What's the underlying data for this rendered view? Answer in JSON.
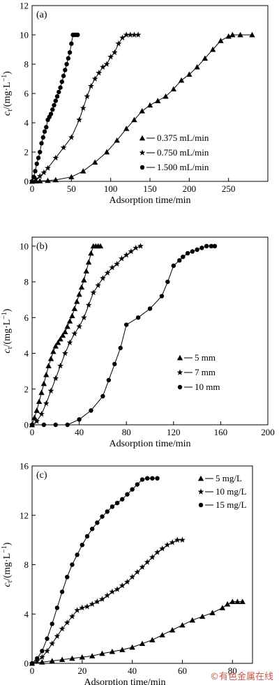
{
  "chart_data": [
    {
      "type": "line",
      "panel_label": "(a)",
      "xlabel": "Adsorption time/min",
      "ylabel": {
        "base": "c",
        "sub": "t",
        "rest": "/(mg·L",
        "sup": "−1",
        "close": ")"
      },
      "xlim": [
        0,
        300
      ],
      "ylim": [
        0,
        12
      ],
      "xticks": [
        0,
        50,
        100,
        150,
        200,
        250
      ],
      "yticks": [
        0,
        2,
        4,
        6,
        8,
        10,
        12
      ],
      "legend_position": "lower-right",
      "series": [
        {
          "name": "0.375 mL/min",
          "marker": "triangle",
          "x": [
            0,
            5,
            10,
            20,
            30,
            50,
            65,
            80,
            95,
            108,
            120,
            130,
            140,
            150,
            160,
            170,
            180,
            190,
            200,
            210,
            220,
            230,
            240,
            250,
            255,
            265,
            280
          ],
          "y": [
            0,
            0.02,
            0.03,
            0.05,
            0.1,
            0.3,
            0.7,
            1.3,
            2.0,
            2.8,
            3.6,
            4.2,
            4.8,
            5.2,
            5.5,
            5.8,
            6.3,
            6.9,
            7.3,
            7.8,
            8.4,
            9.0,
            9.6,
            9.9,
            10,
            10,
            10
          ]
        },
        {
          "name": "0.750 mL/min",
          "marker": "star",
          "x": [
            0,
            5,
            10,
            15,
            20,
            30,
            40,
            50,
            60,
            65,
            70,
            75,
            80,
            85,
            90,
            95,
            100,
            105,
            110,
            115,
            120,
            125,
            130,
            135
          ],
          "y": [
            0,
            0.15,
            0.35,
            0.6,
            0.9,
            1.6,
            2.3,
            3.0,
            4.2,
            5.0,
            5.8,
            6.5,
            7.0,
            7.4,
            7.8,
            8.0,
            8.5,
            8.8,
            9.4,
            9.8,
            10,
            10,
            10,
            10
          ]
        },
        {
          "name": "1.500 mL/min",
          "marker": "circle",
          "x": [
            0,
            2,
            4,
            6,
            8,
            10,
            12,
            14,
            16,
            18,
            20,
            22,
            24,
            26,
            28,
            30,
            32,
            34,
            36,
            38,
            40,
            42,
            44,
            46,
            48,
            50,
            52,
            54,
            56,
            58
          ],
          "y": [
            0,
            0.3,
            0.7,
            1.2,
            1.6,
            2.0,
            2.6,
            3.0,
            3.4,
            3.7,
            4.2,
            4.4,
            4.6,
            4.9,
            5.2,
            5.5,
            5.8,
            6.1,
            6.4,
            6.8,
            7.2,
            7.6,
            8.0,
            8.4,
            8.8,
            9.4,
            10,
            10,
            10,
            10
          ]
        }
      ]
    },
    {
      "type": "line",
      "panel_label": "(b)",
      "xlabel": "Adsorption time/min",
      "ylabel": {
        "base": "c",
        "sub": "t",
        "rest": "/(mg·L",
        "sup": "−1",
        "close": ")"
      },
      "xlim": [
        0,
        200
      ],
      "ylim": [
        0,
        10.5
      ],
      "xticks": [
        0,
        40,
        80,
        120,
        160,
        200
      ],
      "yticks": [
        0,
        2,
        4,
        6,
        8,
        10
      ],
      "legend_position": "lower-right",
      "series": [
        {
          "name": "5 mm",
          "marker": "triangle",
          "x": [
            0,
            2,
            4,
            6,
            8,
            10,
            12,
            14,
            16,
            18,
            20,
            22,
            24,
            26,
            28,
            30,
            32,
            34,
            36,
            38,
            40,
            42,
            44,
            46,
            48,
            50,
            52,
            54,
            56,
            58
          ],
          "y": [
            0,
            0.4,
            0.8,
            1.3,
            1.8,
            2.3,
            2.8,
            3.3,
            3.7,
            4.1,
            4.4,
            4.6,
            4.8,
            5.0,
            5.2,
            5.5,
            5.8,
            6.1,
            6.5,
            6.9,
            7.3,
            7.7,
            8.1,
            8.6,
            9.1,
            9.6,
            10,
            10,
            10,
            10
          ]
        },
        {
          "name": "7 mm",
          "marker": "star",
          "x": [
            0,
            4,
            8,
            12,
            16,
            20,
            24,
            28,
            32,
            36,
            40,
            44,
            48,
            52,
            56,
            60,
            64,
            68,
            72,
            76,
            80,
            84,
            88,
            92
          ],
          "y": [
            0,
            0.2,
            0.6,
            1.2,
            1.9,
            2.6,
            3.3,
            4.0,
            4.6,
            5.1,
            5.5,
            6.0,
            6.7,
            7.4,
            7.8,
            8.2,
            8.5,
            8.8,
            9.0,
            9.3,
            9.5,
            9.7,
            9.9,
            10
          ]
        },
        {
          "name": "10 mm",
          "marker": "circle",
          "x": [
            0,
            10,
            20,
            30,
            40,
            50,
            60,
            65,
            70,
            75,
            80,
            90,
            100,
            110,
            115,
            120,
            125,
            128,
            132,
            136,
            140,
            144,
            148,
            152,
            155
          ],
          "y": [
            0,
            0,
            0,
            0,
            0.3,
            0.8,
            1.6,
            2.5,
            3.4,
            4.3,
            5.6,
            6.0,
            6.5,
            7.2,
            8.0,
            8.9,
            9.2,
            9.4,
            9.6,
            9.7,
            9.8,
            9.9,
            10,
            10,
            10
          ]
        }
      ]
    },
    {
      "type": "line",
      "panel_label": "(c)",
      "xlabel": "Adsorption time/min",
      "ylabel": {
        "base": "c",
        "sub": "t",
        "rest": "/(mg·L",
        "sup": "−1",
        "close": ")"
      },
      "xlim": [
        0,
        88
      ],
      "ylim": [
        0,
        16
      ],
      "xticks": [
        0,
        20,
        40,
        60,
        80
      ],
      "yticks": [
        0,
        4,
        8,
        12,
        16
      ],
      "legend_position": "upper-right",
      "series": [
        {
          "name": "5 mg/L",
          "marker": "triangle",
          "x": [
            0,
            4,
            8,
            12,
            16,
            20,
            24,
            28,
            32,
            36,
            40,
            44,
            48,
            52,
            56,
            60,
            64,
            68,
            72,
            76,
            78,
            80,
            82,
            84
          ],
          "y": [
            0,
            0.1,
            0.2,
            0.3,
            0.4,
            0.5,
            0.6,
            0.8,
            0.95,
            1.1,
            1.3,
            1.6,
            1.9,
            2.3,
            2.7,
            3.1,
            3.5,
            3.8,
            4.1,
            4.5,
            4.8,
            5.0,
            5.0,
            5.0
          ]
        },
        {
          "name": "10 mg/L",
          "marker": "star",
          "x": [
            0,
            2,
            4,
            6,
            8,
            10,
            12,
            14,
            16,
            18,
            20,
            22,
            24,
            26,
            28,
            30,
            32,
            34,
            36,
            38,
            40,
            42,
            44,
            46,
            48,
            50,
            52,
            54,
            56,
            58,
            60
          ],
          "y": [
            0,
            0.2,
            0.5,
            1.0,
            1.6,
            2.2,
            2.8,
            3.3,
            3.8,
            4.3,
            4.5,
            4.6,
            4.8,
            5.0,
            5.2,
            5.5,
            5.8,
            6.0,
            6.3,
            6.6,
            7.0,
            7.4,
            7.8,
            8.2,
            8.6,
            9.0,
            9.3,
            9.6,
            9.8,
            10,
            10
          ]
        },
        {
          "name": "15 mg/L",
          "marker": "circle",
          "x": [
            0,
            2,
            4,
            6,
            8,
            10,
            12,
            14,
            16,
            18,
            20,
            22,
            24,
            26,
            28,
            30,
            32,
            34,
            36,
            38,
            40,
            42,
            44,
            46,
            48,
            50
          ],
          "y": [
            0,
            0.4,
            1.0,
            2.0,
            3.2,
            4.5,
            5.8,
            7.0,
            8.0,
            8.8,
            9.6,
            10.3,
            10.9,
            11.4,
            11.9,
            12.3,
            12.7,
            13.0,
            13.3,
            13.7,
            14.1,
            14.5,
            14.9,
            15,
            15,
            15
          ]
        }
      ]
    }
  ],
  "watermark": "©有色金属在线",
  "colors": {
    "line": "#000000",
    "watermark": "#c0392b"
  }
}
